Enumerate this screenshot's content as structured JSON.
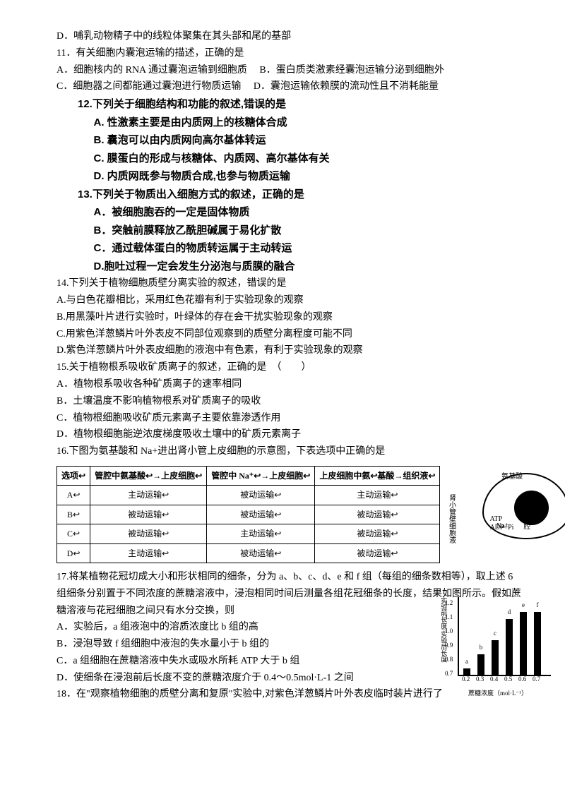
{
  "q10_D": "D．哺乳动物精子中的线粒体聚集在其头部和尾的基部",
  "q11": {
    "stem": "11．有关细胞内囊泡运输的描述，正确的是",
    "A": "A．细胞核内的 RNA 通过囊泡运输到细胞质",
    "B": "B．蛋白质类激素经囊泡运输分泌到细胞外",
    "C": "C．细胞器之间都能通过囊泡进行物质运输",
    "D": "D．囊泡运输依赖膜的流动性且不消耗能量"
  },
  "q12": {
    "stem": "12.下列关于细胞结构和功能的叙述,错误的是",
    "A": "A. 性激素主要是由内质网上的核糖体合成",
    "B": "B. 囊泡可以由内质网向高尔基体转运",
    "C": "C. 膜蛋白的形成与核糖体、内质网、高尔基体有关",
    "D": "D. 内质网既参与物质合成,也参与物质运输"
  },
  "q13": {
    "stem": "13.下列关于物质出入细胞方式的叙述，正确的是",
    "A": "A．被细胞胞吞的一定是固体物质",
    "B": "B．突触前膜释放乙酰胆碱属于易化扩散",
    "C": "C．通过载体蛋白的物质转运属于主动转运",
    "D": "D.胞吐过程一定会发生分泌泡与质膜的融合"
  },
  "q14": {
    "stem": "14.下列关于植物细胞质壁分离实验的叙述，错误的是",
    "A": "A.与白色花瓣相比，采用红色花瓣有利于实验现象的观察",
    "B": "B.用黑藻叶片进行实验时，叶绿体的存在会干扰实验现象的观察",
    "C": "C.用紫色洋葱鳞片叶外表皮不同部位观察到的质壁分离程度可能不同",
    "D": "D.紫色洋葱鳞片叶外表皮细胞的液泡中有色素，有利于实验现象的观察"
  },
  "q15": {
    "stem": "15.关于植物根系吸收矿质离子的叙述，正确的是　（　　）",
    "A": "A．植物根系吸收各种矿质离子的速率相同",
    "B": "B．土壤温度不影响植物根系对矿质离子的吸收",
    "C": "C．植物根细胞吸收矿质元素离子主要依靠渗透作用",
    "D": "D．植物根细胞能逆浓度梯度吸收土壤中的矿质元素离子"
  },
  "q16": {
    "stem": "16.下图为氨基酸和 Na+进出肾小管上皮细胞的示意图，下表选项中正确的是",
    "table": {
      "headers": [
        "选项↩",
        "管腔中氨基酸↩→上皮细胞↩",
        "管腔中 Na⁺↩→上皮细胞↩",
        "上皮细胞中氨↩基酸→组织液↩"
      ],
      "rows": [
        [
          "A↩",
          "主动运输↩",
          "被动运输↩",
          "主动运输↩"
        ],
        [
          "B↩",
          "被动运输↩",
          "被动运输↩",
          "被动运输↩"
        ],
        [
          "C↩",
          "被动运输↩",
          "主动运输↩",
          "被动运输↩"
        ],
        [
          "D↩",
          "主动运输↩",
          "被动运输↩",
          "被动运输↩"
        ]
      ]
    },
    "diagram_labels": {
      "left": "肾小管壁细胞液",
      "right_top": "氨基酸",
      "right_mid": "肾小管管腔",
      "atp": "ATP",
      "adp": "ADP+Pi",
      "na": "Na⁺"
    }
  },
  "q17": {
    "stem1": "17.将某植物花冠切成大小和形状相同的细条，分为 a、b、c、d、e 和 f 组（每组的细条数相等），取上述 6 组细条分别置于不同浓度的蔗糖溶液中，浸泡相同时间后测量各组花冠细条的长度，结果如图所示。假如蔗糖溶液与花冠细胞之间只有水分交换，则",
    "A": "A．实验后，a 组液泡中的溶质浓度比 b 组的高",
    "B": "B．浸泡导致 f 组细胞中液泡的失水量小于 b 组的",
    "C": "C．a 组细胞在蔗糖溶液中失水或吸水所耗 ATP 大于 b 组",
    "D": "D．使细条在浸泡前后长度不变的蔗糖浓度介于 0.4～0.5mol·L-1 之间",
    "chart": {
      "ylabel": "实验前长度/实验后长度",
      "xlabel": "蔗糖浓度（mol·L⁻¹）",
      "yticks": [
        "0.7",
        "0.8",
        "0.9",
        "1.0",
        "1.1",
        "1.2"
      ],
      "bars": [
        {
          "label": "a",
          "x": "0.2",
          "h": 0.75
        },
        {
          "label": "b",
          "x": "0.3",
          "h": 0.85
        },
        {
          "label": "c",
          "x": "0.4",
          "h": 0.95
        },
        {
          "label": "d",
          "x": "0.5",
          "h": 1.1
        },
        {
          "label": "e",
          "x": "0.6",
          "h": 1.15
        },
        {
          "label": "f",
          "x": "0.7",
          "h": 1.15
        }
      ],
      "ymin": 0.7,
      "ymax": 1.2
    }
  },
  "q18": {
    "stem": "18．在\"观察植物细胞的质壁分离和复原\"实验中,对紫色洋葱鳞片叶外表皮临时装片进行了"
  }
}
